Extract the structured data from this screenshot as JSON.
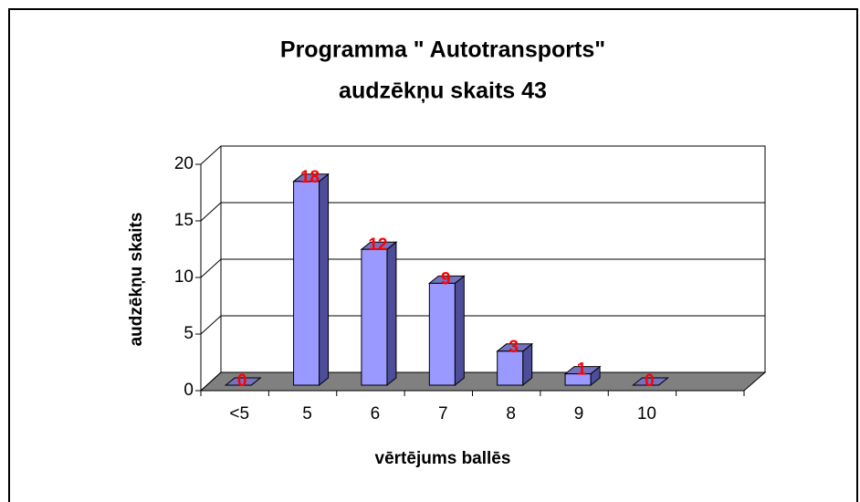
{
  "chart_data": {
    "type": "bar3d",
    "title": [
      "Programma \" Autotransports\"",
      "audzēkņu skaits 43"
    ],
    "x_label": "vērtējums ballēs",
    "y_label": "audzēkņu skaits",
    "categories": [
      "<5",
      "5",
      "6",
      "7",
      "8",
      "9",
      "10",
      null
    ],
    "values": [
      0,
      18,
      12,
      9,
      3,
      1,
      0,
      null
    ],
    "color": "#9999ff",
    "label_color": "#ff0000",
    "ylim": [
      0,
      20
    ],
    "yticks": [
      0,
      5,
      10,
      15,
      20
    ],
    "grid": true
  }
}
